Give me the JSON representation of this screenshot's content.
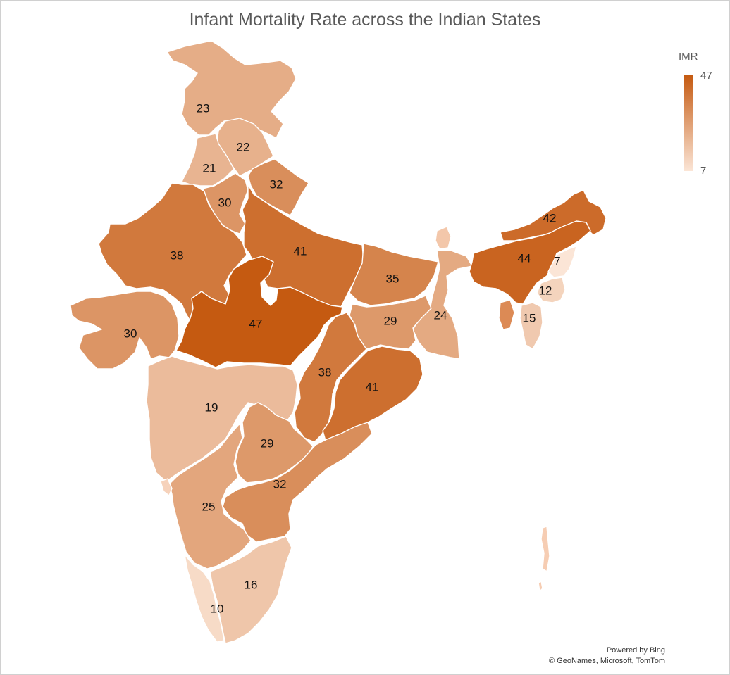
{
  "title": "Infant Mortality Rate across the Indian States",
  "legend": {
    "title": "IMR",
    "max": "47",
    "min": "7",
    "color_max": "#c55a11",
    "color_min": "#fbe5d6"
  },
  "credits": {
    "line1": "Powered by Bing",
    "line2": "© GeoNames, Microsoft, TomTom"
  },
  "states": [
    {
      "id": "jammu-kashmir",
      "value": 23
    },
    {
      "id": "himachal-pradesh",
      "value": 22
    },
    {
      "id": "punjab",
      "value": 21
    },
    {
      "id": "uttarakhand",
      "value": 32
    },
    {
      "id": "haryana",
      "value": 30
    },
    {
      "id": "rajasthan",
      "value": 38
    },
    {
      "id": "uttar-pradesh",
      "value": 41
    },
    {
      "id": "bihar",
      "value": 35
    },
    {
      "id": "arunachal-pradesh",
      "value": 42
    },
    {
      "id": "assam",
      "value": 44
    },
    {
      "id": "nagaland",
      "value": 7
    },
    {
      "id": "manipur",
      "value": 12
    },
    {
      "id": "mizoram",
      "value": 15
    },
    {
      "id": "west-bengal",
      "value": 24
    },
    {
      "id": "jharkhand",
      "value": 29
    },
    {
      "id": "madhya-pradesh",
      "value": 47
    },
    {
      "id": "gujarat",
      "value": 30
    },
    {
      "id": "chhattisgarh",
      "value": 38
    },
    {
      "id": "odisha",
      "value": 41
    },
    {
      "id": "maharashtra",
      "value": 19
    },
    {
      "id": "telangana",
      "value": 29
    },
    {
      "id": "andhra-pradesh",
      "value": 32
    },
    {
      "id": "karnataka",
      "value": 25
    },
    {
      "id": "tamil-nadu",
      "value": 16
    },
    {
      "id": "kerala",
      "value": 10
    }
  ]
}
